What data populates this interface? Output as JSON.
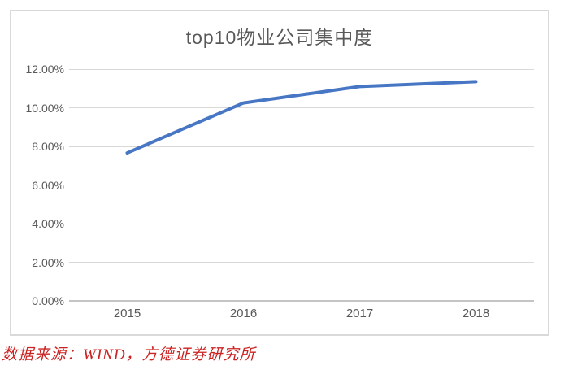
{
  "chart_data": {
    "type": "line",
    "title": "top10物业公司集中度",
    "categories": [
      "2015",
      "2016",
      "2017",
      "2018"
    ],
    "series": [
      {
        "name": "top10物业公司集中度",
        "values": [
          7.66,
          10.25,
          11.1,
          11.35
        ]
      }
    ],
    "xlabel": "",
    "ylabel": "",
    "ylim": [
      0,
      12
    ],
    "y_ticks": [
      {
        "value": 12,
        "label": "12.00%"
      },
      {
        "value": 10,
        "label": "10.00%"
      },
      {
        "value": 8,
        "label": "8.00%"
      },
      {
        "value": 6,
        "label": "6.00%"
      },
      {
        "value": 4,
        "label": "4.00%"
      },
      {
        "value": 2,
        "label": "2.00%"
      },
      {
        "value": 0,
        "label": "0.00%"
      }
    ],
    "grid": true,
    "legend_position": "none",
    "line_color": "#4777c4",
    "text_color": "#595959",
    "gridline_color": "#d9d9d9"
  },
  "source_note": {
    "text": "数据来源：WIND，方德证券研究所",
    "color": "#cc2222"
  }
}
